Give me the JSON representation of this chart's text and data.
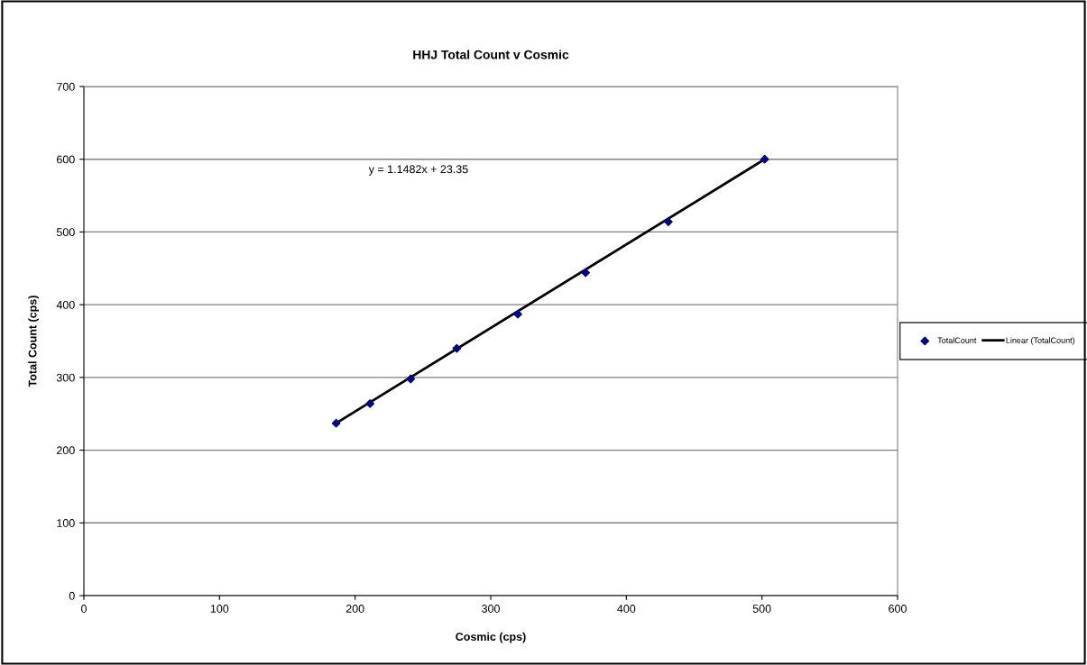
{
  "chart_data": {
    "type": "scatter",
    "title": "HHJ Total Count v Cosmic",
    "xlabel": "Cosmic (cps)",
    "ylabel": "Total Count (cps)",
    "series": [
      {
        "name": "TotalCount",
        "color": "#000080",
        "marker": "diamond",
        "x": [
          186,
          211,
          241,
          275,
          320,
          370,
          431,
          502
        ],
        "values": [
          237,
          264,
          298,
          340,
          387,
          444,
          514,
          600
        ]
      },
      {
        "name": "Linear (TotalCount)",
        "type": "line",
        "color": "#000000",
        "marker": "none",
        "line_style": "solid",
        "x": [
          186,
          502
        ],
        "values": [
          237,
          600
        ]
      }
    ],
    "annotations": [
      "y = 1.1482x + 23.35"
    ],
    "xlim": [
      0,
      600
    ],
    "xticks": [
      0,
      100,
      200,
      300,
      400,
      500,
      600
    ],
    "ylim": [
      0,
      700
    ],
    "yticks": [
      0,
      100,
      200,
      300,
      400,
      500,
      600,
      700
    ],
    "grid": "y",
    "legend": "right"
  }
}
